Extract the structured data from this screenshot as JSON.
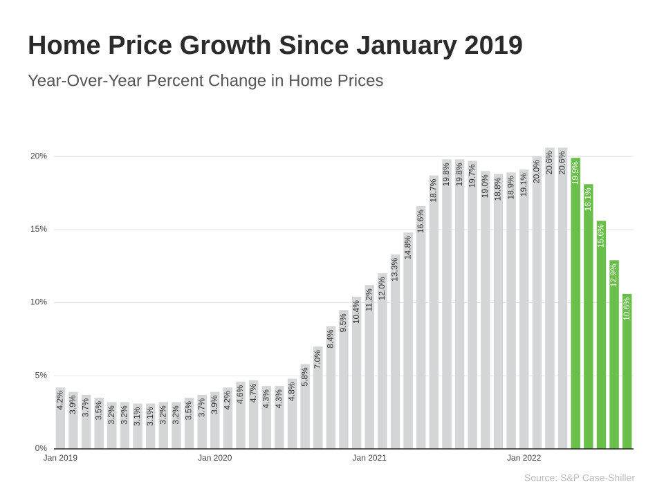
{
  "chart_data": {
    "type": "bar",
    "title": "Home Price Growth Since January 2019",
    "subtitle": "Year-Over-Year Percent Change in Home Prices",
    "source": "Source: S&P Case-Shiller",
    "categories": [
      "Jan 2019",
      null,
      null,
      null,
      null,
      null,
      null,
      null,
      null,
      null,
      null,
      null,
      "Jan 2020",
      null,
      null,
      null,
      null,
      null,
      null,
      null,
      null,
      null,
      null,
      null,
      "Jan 2021",
      null,
      null,
      null,
      null,
      null,
      null,
      null,
      null,
      null,
      null,
      null,
      "Jan 2022",
      null,
      null,
      null,
      null,
      null,
      null,
      null,
      null
    ],
    "values": [
      4.2,
      3.9,
      3.7,
      3.5,
      3.2,
      3.2,
      3.1,
      3.1,
      3.2,
      3.2,
      3.5,
      3.7,
      3.9,
      4.2,
      4.6,
      4.7,
      4.3,
      4.3,
      4.8,
      5.8,
      7.0,
      8.4,
      9.5,
      10.4,
      11.2,
      12.0,
      13.3,
      14.8,
      16.6,
      18.7,
      19.8,
      19.8,
      19.7,
      19.0,
      18.8,
      18.9,
      19.1,
      20.0,
      20.6,
      20.6,
      19.9,
      18.1,
      15.6,
      12.9,
      10.6
    ],
    "value_labels": [
      "4.2%",
      "3.9%",
      "3.7%",
      "3.5%",
      "3.2%",
      "3.2%",
      "3.1%",
      "3.1%",
      "3.2%",
      "3.2%",
      "3.5%",
      "3.7%",
      "3.9%",
      "4.2%",
      "4.6%",
      "4.7%",
      "4.3%",
      "4.3%",
      "4.8%",
      "5.8%",
      "7.0%",
      "8.4%",
      "9.5%",
      "10.4%",
      "11.2%",
      "12.0%",
      "13.3%",
      "14.8%",
      "16.6%",
      "18.7%",
      "19.8%",
      "19.8%",
      "19.7%",
      "19.0%",
      "18.8%",
      "18.9%",
      "19.1%",
      "20.0%",
      "20.6%",
      "20.6%",
      "19.9%",
      "18.1%",
      "15.6%",
      "12.9%",
      "10.6%"
    ],
    "bar_colors": [
      "#d4d6d7",
      "#d4d6d7",
      "#d4d6d7",
      "#d4d6d7",
      "#d4d6d7",
      "#d4d6d7",
      "#d4d6d7",
      "#d4d6d7",
      "#d4d6d7",
      "#d4d6d7",
      "#d4d6d7",
      "#d4d6d7",
      "#d4d6d7",
      "#d4d6d7",
      "#d4d6d7",
      "#d4d6d7",
      "#d4d6d7",
      "#d4d6d7",
      "#d4d6d7",
      "#d4d6d7",
      "#d4d6d7",
      "#d4d6d7",
      "#d4d6d7",
      "#d4d6d7",
      "#d4d6d7",
      "#d4d6d7",
      "#d4d6d7",
      "#d4d6d7",
      "#d4d6d7",
      "#d4d6d7",
      "#d4d6d7",
      "#d4d6d7",
      "#d4d6d7",
      "#d4d6d7",
      "#d4d6d7",
      "#d4d6d7",
      "#d4d6d7",
      "#d4d6d7",
      "#d4d6d7",
      "#d4d6d7",
      "#6abf4b",
      "#6abf4b",
      "#6abf4b",
      "#6abf4b",
      "#6abf4b"
    ],
    "ylim": [
      0,
      21
    ],
    "yticks": [
      {
        "value": 0,
        "label": "0%"
      },
      {
        "value": 5,
        "label": "5%"
      },
      {
        "value": 10,
        "label": "10%"
      },
      {
        "value": 15,
        "label": "15%"
      },
      {
        "value": 20,
        "label": "20%"
      }
    ],
    "grid": true
  }
}
